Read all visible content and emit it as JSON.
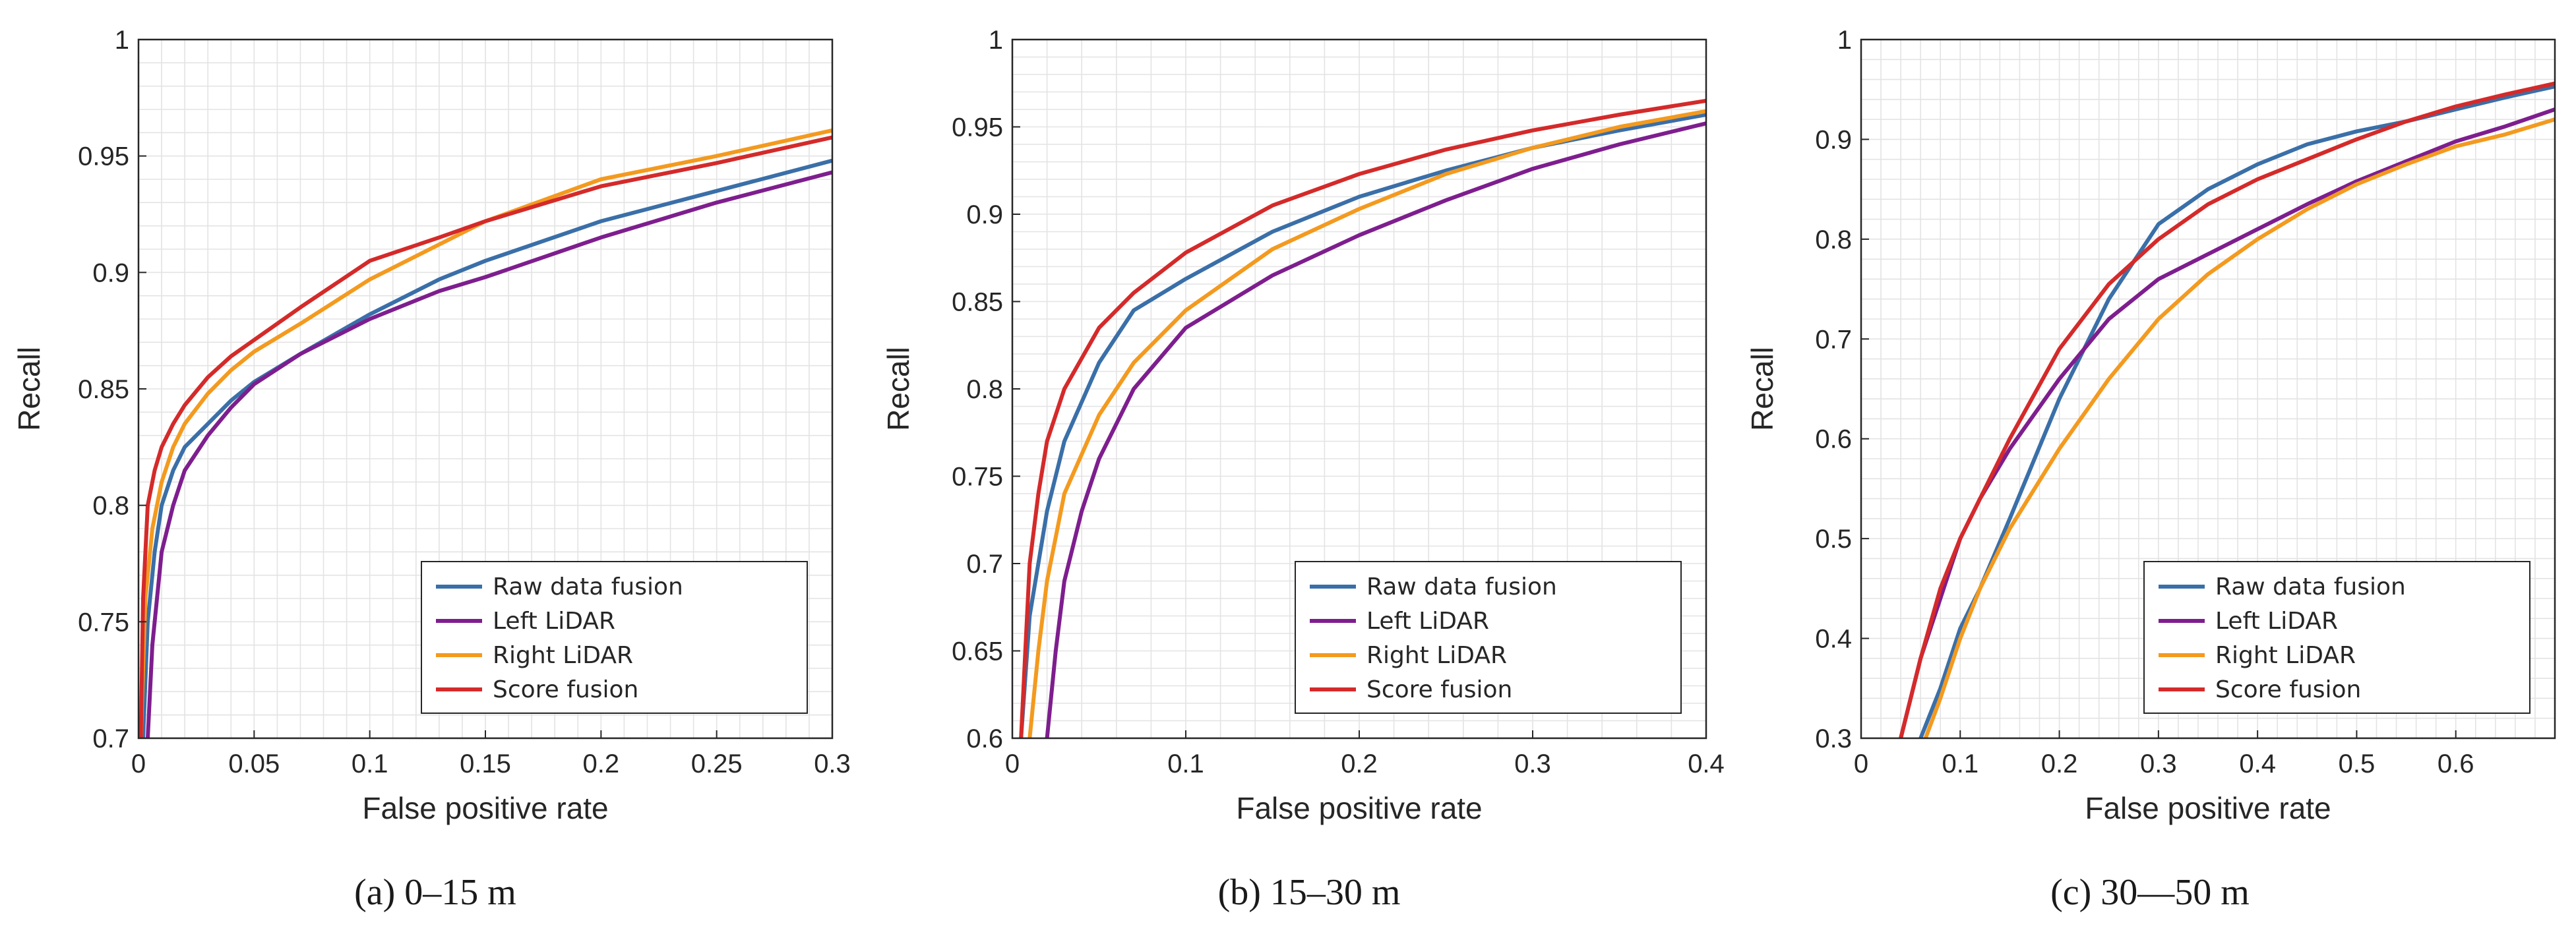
{
  "colors": {
    "raw": "#3a6fa8",
    "left": "#7e1e8e",
    "right": "#f39a1f",
    "score": "#d42a2a",
    "grid": "#e3e3e3",
    "axis": "#262626"
  },
  "chart_data": [
    {
      "type": "line",
      "caption": "(a)  0–15 m",
      "xlabel": "False positive rate",
      "ylabel": "Recall",
      "xlim": [
        0,
        0.3
      ],
      "ylim": [
        0.7,
        1
      ],
      "xticks": [
        0,
        0.05,
        0.1,
        0.15,
        0.2,
        0.25,
        0.3
      ],
      "xtick_labels": [
        "0",
        "0.05",
        "0.1",
        "0.15",
        "0.2",
        "0.25",
        "0.3"
      ],
      "yticks": [
        0.7,
        0.75,
        0.8,
        0.85,
        0.9,
        0.95,
        1
      ],
      "ytick_labels": [
        "0.7",
        "0.75",
        "0.8",
        "0.85",
        "0.9",
        "0.95",
        "1"
      ],
      "grid": true,
      "legend_position": "bottom-right",
      "series": [
        {
          "name": "Raw data fusion",
          "color_key": "raw",
          "x": [
            0.002,
            0.004,
            0.007,
            0.01,
            0.015,
            0.02,
            0.03,
            0.04,
            0.05,
            0.07,
            0.1,
            0.13,
            0.15,
            0.2,
            0.25,
            0.3
          ],
          "y": [
            0.7,
            0.75,
            0.78,
            0.8,
            0.815,
            0.825,
            0.835,
            0.845,
            0.853,
            0.865,
            0.882,
            0.897,
            0.905,
            0.922,
            0.935,
            0.948
          ]
        },
        {
          "name": "Left LiDAR",
          "color_key": "left",
          "x": [
            0.004,
            0.006,
            0.01,
            0.015,
            0.02,
            0.03,
            0.04,
            0.05,
            0.07,
            0.1,
            0.13,
            0.15,
            0.2,
            0.25,
            0.3
          ],
          "y": [
            0.7,
            0.74,
            0.78,
            0.8,
            0.815,
            0.83,
            0.842,
            0.852,
            0.865,
            0.88,
            0.892,
            0.898,
            0.915,
            0.93,
            0.943
          ]
        },
        {
          "name": "Right LiDAR",
          "color_key": "right",
          "x": [
            0.001,
            0.003,
            0.006,
            0.01,
            0.015,
            0.02,
            0.03,
            0.04,
            0.05,
            0.07,
            0.1,
            0.13,
            0.15,
            0.2,
            0.25,
            0.3
          ],
          "y": [
            0.7,
            0.76,
            0.79,
            0.81,
            0.825,
            0.835,
            0.848,
            0.858,
            0.866,
            0.878,
            0.897,
            0.912,
            0.922,
            0.94,
            0.95,
            0.961
          ]
        },
        {
          "name": "Score fusion",
          "color_key": "score",
          "x": [
            0.001,
            0.002,
            0.004,
            0.007,
            0.01,
            0.015,
            0.02,
            0.03,
            0.04,
            0.05,
            0.07,
            0.1,
            0.13,
            0.15,
            0.2,
            0.25,
            0.3
          ],
          "y": [
            0.7,
            0.76,
            0.8,
            0.815,
            0.825,
            0.835,
            0.843,
            0.855,
            0.864,
            0.871,
            0.885,
            0.905,
            0.915,
            0.922,
            0.937,
            0.947,
            0.958
          ]
        }
      ]
    },
    {
      "type": "line",
      "caption": "(b)  15–30 m",
      "xlabel": "False positive rate",
      "ylabel": "Recall",
      "xlim": [
        0,
        0.4
      ],
      "ylim": [
        0.6,
        1
      ],
      "xticks": [
        0,
        0.1,
        0.2,
        0.3,
        0.4
      ],
      "xtick_labels": [
        "0",
        "0.1",
        "0.2",
        "0.3",
        "0.4"
      ],
      "yticks": [
        0.6,
        0.65,
        0.7,
        0.75,
        0.8,
        0.85,
        0.9,
        0.95,
        1
      ],
      "ytick_labels": [
        "0.6",
        "0.65",
        "0.7",
        "0.75",
        "0.8",
        "0.85",
        "0.9",
        "0.95",
        "1"
      ],
      "grid": true,
      "legend_position": "bottom-right",
      "series": [
        {
          "name": "Raw data fusion",
          "color_key": "raw",
          "x": [
            0.005,
            0.01,
            0.02,
            0.03,
            0.05,
            0.07,
            0.1,
            0.15,
            0.2,
            0.25,
            0.3,
            0.35,
            0.4
          ],
          "y": [
            0.6,
            0.67,
            0.73,
            0.77,
            0.815,
            0.845,
            0.863,
            0.89,
            0.91,
            0.925,
            0.938,
            0.948,
            0.957
          ]
        },
        {
          "name": "Left LiDAR",
          "color_key": "left",
          "x": [
            0.02,
            0.025,
            0.03,
            0.04,
            0.05,
            0.07,
            0.1,
            0.15,
            0.2,
            0.25,
            0.3,
            0.35,
            0.4
          ],
          "y": [
            0.6,
            0.65,
            0.69,
            0.73,
            0.76,
            0.8,
            0.835,
            0.865,
            0.888,
            0.908,
            0.926,
            0.94,
            0.952
          ]
        },
        {
          "name": "Right LiDAR",
          "color_key": "right",
          "x": [
            0.01,
            0.015,
            0.02,
            0.03,
            0.05,
            0.07,
            0.1,
            0.15,
            0.2,
            0.25,
            0.3,
            0.35,
            0.4
          ],
          "y": [
            0.6,
            0.65,
            0.69,
            0.74,
            0.785,
            0.815,
            0.845,
            0.88,
            0.903,
            0.923,
            0.938,
            0.95,
            0.959
          ]
        },
        {
          "name": "Score fusion",
          "color_key": "score",
          "x": [
            0.005,
            0.008,
            0.01,
            0.015,
            0.02,
            0.03,
            0.05,
            0.07,
            0.1,
            0.15,
            0.2,
            0.25,
            0.3,
            0.35,
            0.4
          ],
          "y": [
            0.6,
            0.66,
            0.7,
            0.74,
            0.77,
            0.8,
            0.835,
            0.855,
            0.878,
            0.905,
            0.923,
            0.937,
            0.948,
            0.957,
            0.965
          ]
        }
      ]
    },
    {
      "type": "line",
      "caption": "(c)  30—50 m",
      "xlabel": "False positive rate",
      "ylabel": "Recall",
      "xlim": [
        0,
        0.7
      ],
      "ylim": [
        0.3,
        1
      ],
      "xticks": [
        0,
        0.1,
        0.2,
        0.3,
        0.4,
        0.5,
        0.6
      ],
      "xtick_labels": [
        "0",
        "0.1",
        "0.2",
        "0.3",
        "0.4",
        "0.5",
        "0.6"
      ],
      "yticks": [
        0.3,
        0.4,
        0.5,
        0.6,
        0.7,
        0.8,
        0.9,
        1
      ],
      "ytick_labels": [
        "0.3",
        "0.4",
        "0.5",
        "0.6",
        "0.7",
        "0.8",
        "0.9",
        "1"
      ],
      "grid": true,
      "legend_position": "bottom-right",
      "series": [
        {
          "name": "Raw data fusion",
          "color_key": "raw",
          "x": [
            0.06,
            0.08,
            0.1,
            0.12,
            0.15,
            0.2,
            0.25,
            0.3,
            0.35,
            0.4,
            0.45,
            0.5,
            0.55,
            0.6,
            0.65,
            0.7
          ],
          "y": [
            0.3,
            0.35,
            0.41,
            0.45,
            0.52,
            0.64,
            0.74,
            0.815,
            0.85,
            0.875,
            0.895,
            0.908,
            0.918,
            0.93,
            0.942,
            0.953
          ]
        },
        {
          "name": "Left LiDAR",
          "color_key": "left",
          "x": [
            0.04,
            0.06,
            0.08,
            0.1,
            0.12,
            0.15,
            0.2,
            0.25,
            0.3,
            0.35,
            0.4,
            0.45,
            0.5,
            0.55,
            0.6,
            0.65,
            0.7
          ],
          "y": [
            0.3,
            0.38,
            0.44,
            0.5,
            0.54,
            0.59,
            0.66,
            0.72,
            0.76,
            0.785,
            0.81,
            0.835,
            0.858,
            0.878,
            0.898,
            0.913,
            0.93
          ]
        },
        {
          "name": "Right LiDAR",
          "color_key": "right",
          "x": [
            0.065,
            0.08,
            0.1,
            0.12,
            0.15,
            0.2,
            0.25,
            0.3,
            0.35,
            0.4,
            0.45,
            0.5,
            0.55,
            0.6,
            0.65,
            0.7
          ],
          "y": [
            0.3,
            0.34,
            0.4,
            0.45,
            0.51,
            0.59,
            0.66,
            0.72,
            0.765,
            0.8,
            0.83,
            0.855,
            0.875,
            0.893,
            0.905,
            0.92
          ]
        },
        {
          "name": "Score fusion",
          "color_key": "score",
          "x": [
            0.04,
            0.06,
            0.08,
            0.1,
            0.12,
            0.15,
            0.2,
            0.25,
            0.3,
            0.35,
            0.4,
            0.45,
            0.5,
            0.55,
            0.6,
            0.65,
            0.7
          ],
          "y": [
            0.3,
            0.38,
            0.45,
            0.5,
            0.54,
            0.6,
            0.69,
            0.755,
            0.8,
            0.835,
            0.86,
            0.88,
            0.9,
            0.918,
            0.933,
            0.945,
            0.956
          ]
        }
      ]
    }
  ]
}
